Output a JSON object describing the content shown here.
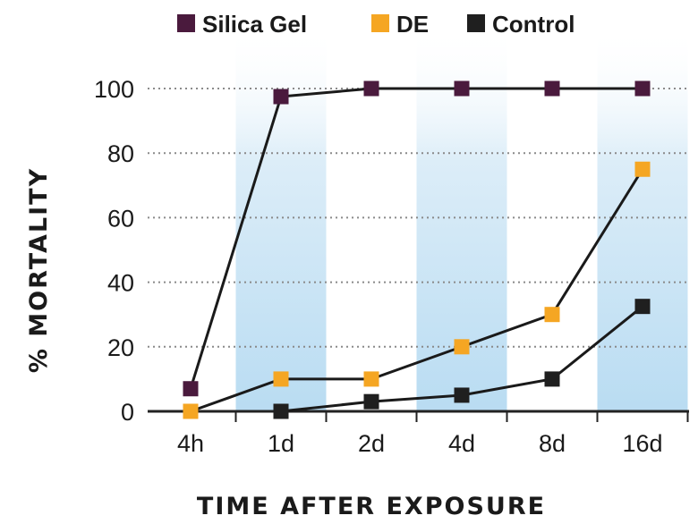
{
  "chart_data": {
    "type": "line",
    "categories": [
      "4h",
      "1d",
      "2d",
      "4d",
      "8d",
      "16d"
    ],
    "series": [
      {
        "name": "Silica Gel",
        "color": "#4a1a3d",
        "values": [
          7,
          97.5,
          100,
          100,
          100,
          100
        ]
      },
      {
        "name": "DE",
        "color": "#f5a623",
        "values": [
          0,
          10,
          10,
          20,
          30,
          75
        ]
      },
      {
        "name": "Control",
        "color": "#1f1f1f",
        "values": [
          null,
          0,
          3,
          5,
          10,
          32.5
        ]
      }
    ],
    "xlabel": "TIME AFTER EXPOSURE",
    "ylabel": "% MORTALITY",
    "ylim": [
      0,
      100
    ],
    "yticks": [
      0,
      20,
      40,
      60,
      80,
      100
    ],
    "grid": "dotted horizontal",
    "legend_position": "top",
    "band_color": "#cfe6f5"
  }
}
